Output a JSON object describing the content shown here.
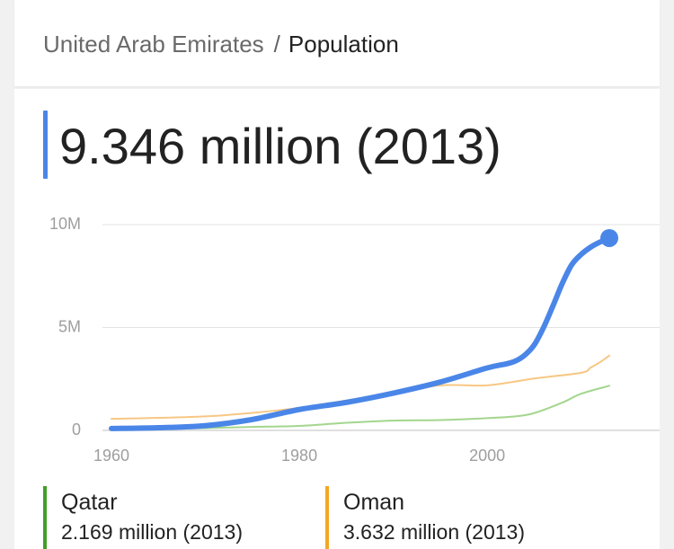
{
  "breadcrumb": {
    "country": "United Arab Emirates",
    "separator": "/",
    "current": "Population"
  },
  "headline": {
    "text": "9.346 million (2013)",
    "accent_color": "#4a86e8"
  },
  "chart_data": {
    "type": "line",
    "x_ticks": [
      1960,
      1980,
      2000
    ],
    "y_ticks": [
      {
        "value": 0,
        "label": "0"
      },
      {
        "value": 5000000,
        "label": "5M"
      },
      {
        "value": 10000000,
        "label": "10M"
      }
    ],
    "xlim": [
      1960,
      2013
    ],
    "ylim": [
      0,
      10000000
    ],
    "grid": true,
    "series": [
      {
        "name": "United Arab Emirates",
        "color": "#4a86e8",
        "emphasis": "primary",
        "end_marker": true,
        "points": [
          [
            1960,
            92000
          ],
          [
            1965,
            130000
          ],
          [
            1970,
            230000
          ],
          [
            1975,
            530000
          ],
          [
            1980,
            1015000
          ],
          [
            1985,
            1360000
          ],
          [
            1990,
            1810000
          ],
          [
            1995,
            2350000
          ],
          [
            2000,
            3033000
          ],
          [
            2002,
            3230000
          ],
          [
            2003,
            3370000
          ],
          [
            2004,
            3658000
          ],
          [
            2005,
            4150000
          ],
          [
            2006,
            5000000
          ],
          [
            2007,
            6050000
          ],
          [
            2008,
            7150000
          ],
          [
            2009,
            8050000
          ],
          [
            2010,
            8550000
          ],
          [
            2011,
            8900000
          ],
          [
            2012,
            9150000
          ],
          [
            2013,
            9346000
          ]
        ]
      },
      {
        "name": "Oman",
        "color": "#f6c27a",
        "emphasis": "secondary",
        "end_marker": false,
        "points": [
          [
            1960,
            560000
          ],
          [
            1965,
            610000
          ],
          [
            1970,
            680000
          ],
          [
            1975,
            850000
          ],
          [
            1980,
            1100000
          ],
          [
            1985,
            1450000
          ],
          [
            1990,
            1810000
          ],
          [
            1995,
            2190000
          ],
          [
            2000,
            2190000
          ],
          [
            2005,
            2520000
          ],
          [
            2010,
            2800000
          ],
          [
            2011,
            3050000
          ],
          [
            2012,
            3310000
          ],
          [
            2013,
            3632000
          ]
        ]
      },
      {
        "name": "Qatar",
        "color": "#9bd384",
        "emphasis": "secondary",
        "end_marker": false,
        "points": [
          [
            1960,
            47000
          ],
          [
            1965,
            70000
          ],
          [
            1970,
            110000
          ],
          [
            1975,
            170000
          ],
          [
            1980,
            220000
          ],
          [
            1985,
            370000
          ],
          [
            1990,
            475000
          ],
          [
            1995,
            502000
          ],
          [
            2000,
            594000
          ],
          [
            2003,
            680000
          ],
          [
            2005,
            840000
          ],
          [
            2008,
            1350000
          ],
          [
            2010,
            1780000
          ],
          [
            2013,
            2169000
          ]
        ]
      }
    ]
  },
  "comparisons": [
    {
      "name": "Qatar",
      "value": "2.169 million (2013)",
      "color": "#3f9f28"
    },
    {
      "name": "Oman",
      "value": "3.632 million (2013)",
      "color": "#f4a623"
    }
  ]
}
